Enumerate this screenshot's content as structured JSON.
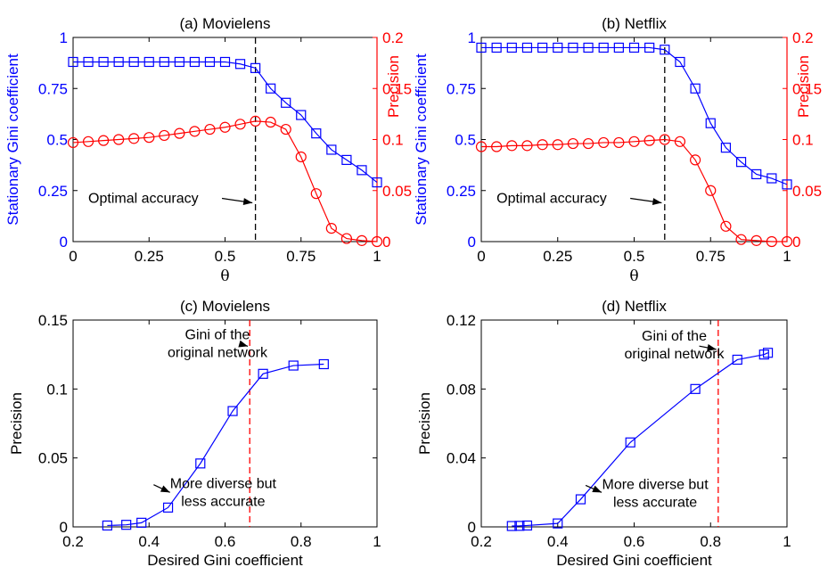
{
  "chart_data": [
    {
      "type": "line",
      "title": "(a) Movielens",
      "xlabel": "θ",
      "ylabel_left": "Stationary Gini coefficient",
      "ylabel_right": "Precision",
      "xlim": [
        0,
        1
      ],
      "ylim_left": [
        0,
        1
      ],
      "ylim_right": [
        0,
        0.2
      ],
      "xticks": [
        0,
        0.25,
        0.5,
        0.75,
        1
      ],
      "xtick_labels": [
        "0",
        "0.25",
        "0.5",
        "0.75",
        "1"
      ],
      "yticks_left": [
        0,
        0.25,
        0.5,
        0.75,
        1
      ],
      "ytick_labels_left": [
        "0",
        "0.25",
        "0.5",
        "0.75",
        "1"
      ],
      "yticks_right": [
        0,
        0.05,
        0.1,
        0.15,
        0.2
      ],
      "ytick_labels_right": [
        "0",
        "0.05",
        "0.1",
        "0.15",
        "0.2"
      ],
      "left_color": "#0000ff",
      "right_color": "#ff0000",
      "vline": {
        "x": 0.6,
        "color": "#000000"
      },
      "annotations": [
        {
          "text": "Optimal accuracy",
          "x": 0.05,
          "y": 0.19,
          "arrow_to": [
            0.59,
            0.19
          ]
        }
      ],
      "series": [
        {
          "axis": "left",
          "marker": "square",
          "color": "#0000ff",
          "x": [
            0,
            0.05,
            0.1,
            0.15,
            0.2,
            0.25,
            0.3,
            0.35,
            0.4,
            0.45,
            0.5,
            0.55,
            0.6,
            0.65,
            0.7,
            0.75,
            0.8,
            0.85,
            0.9,
            0.95,
            1
          ],
          "values": [
            0.88,
            0.88,
            0.88,
            0.88,
            0.88,
            0.88,
            0.88,
            0.88,
            0.88,
            0.88,
            0.88,
            0.87,
            0.85,
            0.75,
            0.68,
            0.62,
            0.53,
            0.45,
            0.4,
            0.35,
            0.29
          ]
        },
        {
          "axis": "right",
          "marker": "circle",
          "color": "#ff0000",
          "x": [
            0,
            0.05,
            0.1,
            0.15,
            0.2,
            0.25,
            0.3,
            0.35,
            0.4,
            0.45,
            0.5,
            0.55,
            0.6,
            0.65,
            0.7,
            0.75,
            0.8,
            0.85,
            0.9,
            0.95,
            1
          ],
          "values": [
            0.097,
            0.098,
            0.099,
            0.1,
            0.101,
            0.102,
            0.104,
            0.106,
            0.108,
            0.11,
            0.112,
            0.115,
            0.118,
            0.117,
            0.11,
            0.083,
            0.047,
            0.013,
            0.003,
            0.001,
            0.0
          ]
        }
      ]
    },
    {
      "type": "line",
      "title": "(b) Netflix",
      "xlabel": "θ",
      "ylabel_left": "Stationary Gini coefficient",
      "ylabel_right": "Precision",
      "xlim": [
        0,
        1
      ],
      "ylim_left": [
        0,
        1
      ],
      "ylim_right": [
        0,
        0.2
      ],
      "xticks": [
        0,
        0.25,
        0.5,
        0.75,
        1
      ],
      "xtick_labels": [
        "0",
        "0.25",
        "0.5",
        "0.75",
        "1"
      ],
      "yticks_left": [
        0,
        0.25,
        0.5,
        0.75,
        1
      ],
      "ytick_labels_left": [
        "0",
        "0.25",
        "0.5",
        "0.75",
        "1"
      ],
      "yticks_right": [
        0,
        0.05,
        0.1,
        0.15,
        0.2
      ],
      "ytick_labels_right": [
        "0",
        "0.05",
        "0.1",
        "0.15",
        "0.2"
      ],
      "left_color": "#0000ff",
      "right_color": "#ff0000",
      "vline": {
        "x": 0.6,
        "color": "#000000"
      },
      "annotations": [
        {
          "text": "Optimal accuracy",
          "x": 0.05,
          "y": 0.19,
          "arrow_to": [
            0.59,
            0.19
          ]
        }
      ],
      "series": [
        {
          "axis": "left",
          "marker": "square",
          "color": "#0000ff",
          "x": [
            0,
            0.05,
            0.1,
            0.15,
            0.2,
            0.25,
            0.3,
            0.35,
            0.4,
            0.45,
            0.5,
            0.55,
            0.6,
            0.65,
            0.7,
            0.75,
            0.8,
            0.85,
            0.9,
            0.95,
            1
          ],
          "values": [
            0.95,
            0.95,
            0.95,
            0.95,
            0.95,
            0.95,
            0.95,
            0.95,
            0.95,
            0.95,
            0.95,
            0.95,
            0.94,
            0.88,
            0.75,
            0.58,
            0.46,
            0.39,
            0.33,
            0.31,
            0.28
          ]
        },
        {
          "axis": "right",
          "marker": "circle",
          "color": "#ff0000",
          "x": [
            0,
            0.05,
            0.1,
            0.15,
            0.2,
            0.25,
            0.3,
            0.35,
            0.4,
            0.45,
            0.5,
            0.55,
            0.6,
            0.65,
            0.7,
            0.75,
            0.8,
            0.85,
            0.9,
            0.95,
            1
          ],
          "values": [
            0.093,
            0.093,
            0.094,
            0.094,
            0.095,
            0.095,
            0.096,
            0.096,
            0.097,
            0.097,
            0.098,
            0.099,
            0.1,
            0.098,
            0.08,
            0.05,
            0.015,
            0.002,
            0.001,
            0.0,
            0.0
          ]
        }
      ]
    },
    {
      "type": "line",
      "title": "(c) Movielens",
      "xlabel": "Desired Gini coefficient",
      "ylabel": "Precision",
      "xlim": [
        0.2,
        1
      ],
      "ylim": [
        0,
        0.15
      ],
      "xticks": [
        0.2,
        0.4,
        0.6,
        0.8,
        1
      ],
      "xtick_labels": [
        "0.2",
        "0.4",
        "0.6",
        "0.8",
        "1"
      ],
      "yticks": [
        0,
        0.05,
        0.1,
        0.15
      ],
      "ytick_labels": [
        "0",
        "0.05",
        "0.1",
        "0.15"
      ],
      "vline": {
        "x": 0.665,
        "color": "#ff0000"
      },
      "annotations": [
        {
          "text": "Gini of the original network",
          "lines": [
            "Gini of the",
            "original network"
          ],
          "x": 0.58,
          "y": 0.136,
          "arrow_to": [
            0.66,
            0.131
          ]
        },
        {
          "text": "More diverse but less accurate",
          "lines": [
            "More diverse but",
            "less accurate"
          ],
          "x": 0.595,
          "y": 0.028,
          "arrow_to": [
            0.455,
            0.025
          ]
        }
      ],
      "series": [
        {
          "axis": "left",
          "marker": "square",
          "color": "#0000ff",
          "x": [
            0.29,
            0.34,
            0.38,
            0.45,
            0.535,
            0.62,
            0.7,
            0.78,
            0.86
          ],
          "values": [
            0.001,
            0.0015,
            0.003,
            0.014,
            0.046,
            0.084,
            0.111,
            0.117,
            0.118
          ]
        }
      ]
    },
    {
      "type": "line",
      "title": "(d) Netflix",
      "xlabel": "Desired Gini coefficient",
      "ylabel": "Precision",
      "xlim": [
        0.2,
        1
      ],
      "ylim": [
        0,
        0.12
      ],
      "xticks": [
        0.2,
        0.4,
        0.6,
        0.8,
        1
      ],
      "xtick_labels": [
        "0.2",
        "0.4",
        "0.6",
        "0.8",
        "1"
      ],
      "yticks": [
        0,
        0.04,
        0.08,
        0.12
      ],
      "ytick_labels": [
        "0",
        "0.04",
        "0.08",
        "0.12"
      ],
      "vline": {
        "x": 0.82,
        "color": "#ff0000"
      },
      "annotations": [
        {
          "text": "Gini of the original network",
          "lines": [
            "Gini of the",
            "original network"
          ],
          "x": 0.705,
          "y": 0.108,
          "arrow_to": [
            0.815,
            0.103
          ]
        },
        {
          "text": "More diverse but less accurate",
          "lines": [
            "More diverse but",
            "less accurate"
          ],
          "x": 0.655,
          "y": 0.022,
          "arrow_to": [
            0.515,
            0.02
          ]
        }
      ],
      "series": [
        {
          "axis": "left",
          "marker": "square",
          "color": "#0000ff",
          "x": [
            0.28,
            0.3,
            0.32,
            0.4,
            0.46,
            0.59,
            0.76,
            0.87,
            0.94,
            0.95
          ],
          "values": [
            0.0005,
            0.0006,
            0.0008,
            0.002,
            0.016,
            0.049,
            0.08,
            0.097,
            0.1,
            0.101
          ]
        }
      ]
    }
  ]
}
